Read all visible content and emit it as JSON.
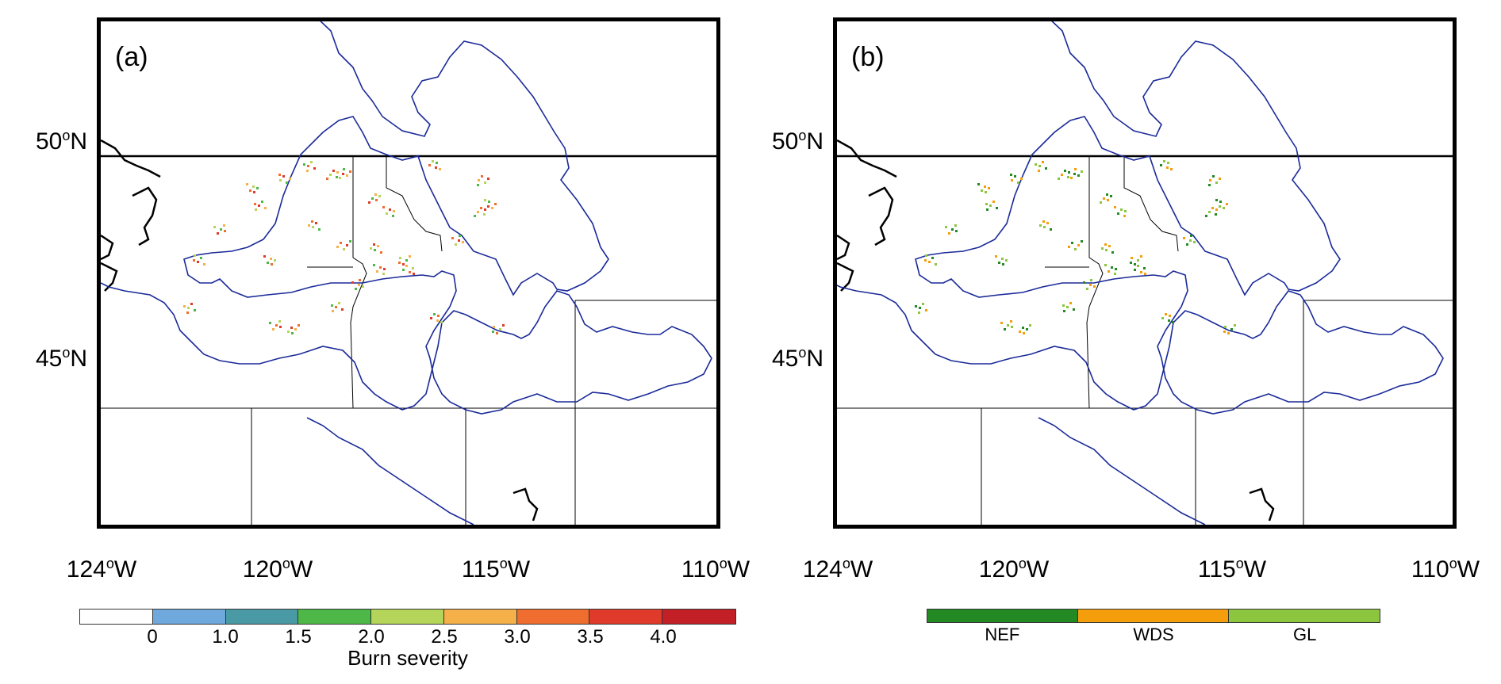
{
  "panels": [
    {
      "id": "a",
      "label": "(a)",
      "mode": "severity"
    },
    {
      "id": "b",
      "label": "(b)",
      "mode": "vegetation"
    }
  ],
  "lat_labels": [
    {
      "num": "50",
      "deg": "o",
      "suffix": "N"
    },
    {
      "num": "45",
      "deg": "o",
      "suffix": "N"
    }
  ],
  "lon_labels": [
    {
      "num": "124",
      "deg": "o",
      "suffix": "W"
    },
    {
      "num": "120",
      "deg": "o",
      "suffix": "W"
    },
    {
      "num": "115",
      "deg": "o",
      "suffix": "W"
    },
    {
      "num": "110",
      "deg": "o",
      "suffix": "W"
    }
  ],
  "severity_colorbar": {
    "title": "Burn severity",
    "colors": [
      "#ffffff",
      "#6fa8dc",
      "#4a9aa5",
      "#4db848",
      "#b5d55a",
      "#f6b04a",
      "#ef6d2e",
      "#e03a2b",
      "#c21f26"
    ],
    "ticks": [
      "0",
      "1.0",
      "1.5",
      "2.0",
      "2.5",
      "3.0",
      "3.5",
      "4.0"
    ]
  },
  "vegetation_colorbar": {
    "categories": [
      {
        "name": "NEF",
        "color": "#238a23"
      },
      {
        "name": "WDS",
        "color": "#f59e0b"
      },
      {
        "name": "GL",
        "color": "#8cc63f"
      }
    ]
  },
  "colors": {
    "basin_outline": "#1a2a99",
    "boundary": "#000000",
    "frame": "#000000"
  }
}
